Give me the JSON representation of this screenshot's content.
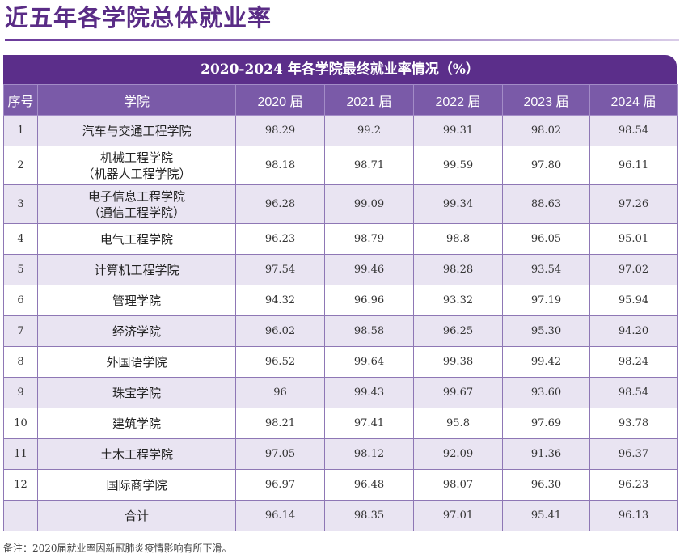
{
  "page_title": "近五年各学院总体就业率",
  "table": {
    "caption": "2020-2024 年各学院最终就业率情况（%）",
    "headers": [
      "序号",
      "学院",
      "2020 届",
      "2021 届",
      "2022 届",
      "2023 届",
      "2024 届"
    ],
    "rows": [
      {
        "no": "1",
        "college": [
          "汽车与交通工程学院"
        ],
        "values": [
          "98.29",
          "99.2",
          "99.31",
          "98.02",
          "98.54"
        ]
      },
      {
        "no": "2",
        "college": [
          "机械工程学院",
          "（机器人工程学院）"
        ],
        "values": [
          "98.18",
          "98.71",
          "99.59",
          "97.80",
          "96.11"
        ]
      },
      {
        "no": "3",
        "college": [
          "电子信息工程学院",
          "（通信工程学院）"
        ],
        "values": [
          "96.28",
          "99.09",
          "99.34",
          "88.63",
          "97.26"
        ]
      },
      {
        "no": "4",
        "college": [
          "电气工程学院"
        ],
        "values": [
          "96.23",
          "98.79",
          "98.8",
          "96.05",
          "95.01"
        ]
      },
      {
        "no": "5",
        "college": [
          "计算机工程学院"
        ],
        "values": [
          "97.54",
          "99.46",
          "98.28",
          "93.54",
          "97.02"
        ]
      },
      {
        "no": "6",
        "college": [
          "管理学院"
        ],
        "values": [
          "94.32",
          "96.96",
          "93.32",
          "97.19",
          "95.94"
        ]
      },
      {
        "no": "7",
        "college": [
          "经济学院"
        ],
        "values": [
          "96.02",
          "98.58",
          "96.25",
          "95.30",
          "94.20"
        ]
      },
      {
        "no": "8",
        "college": [
          "外国语学院"
        ],
        "values": [
          "96.52",
          "99.64",
          "99.38",
          "99.42",
          "98.24"
        ]
      },
      {
        "no": "9",
        "college": [
          "珠宝学院"
        ],
        "values": [
          "96",
          "99.43",
          "99.67",
          "93.60",
          "98.54"
        ]
      },
      {
        "no": "10",
        "college": [
          "建筑学院"
        ],
        "values": [
          "98.21",
          "97.41",
          "95.8",
          "97.69",
          "93.78"
        ]
      },
      {
        "no": "11",
        "college": [
          "土木工程学院"
        ],
        "values": [
          "97.05",
          "98.12",
          "92.09",
          "91.36",
          "96.37"
        ]
      },
      {
        "no": "12",
        "college": [
          "国际商学院"
        ],
        "values": [
          "96.97",
          "96.48",
          "98.07",
          "96.30",
          "96.23"
        ]
      }
    ],
    "total": {
      "label": "合计",
      "values": [
        "96.14",
        "98.35",
        "97.01",
        "95.41",
        "96.13"
      ]
    }
  },
  "note": "备注：2020届就业率因新冠肺炎疫情影响有所下滑。"
}
